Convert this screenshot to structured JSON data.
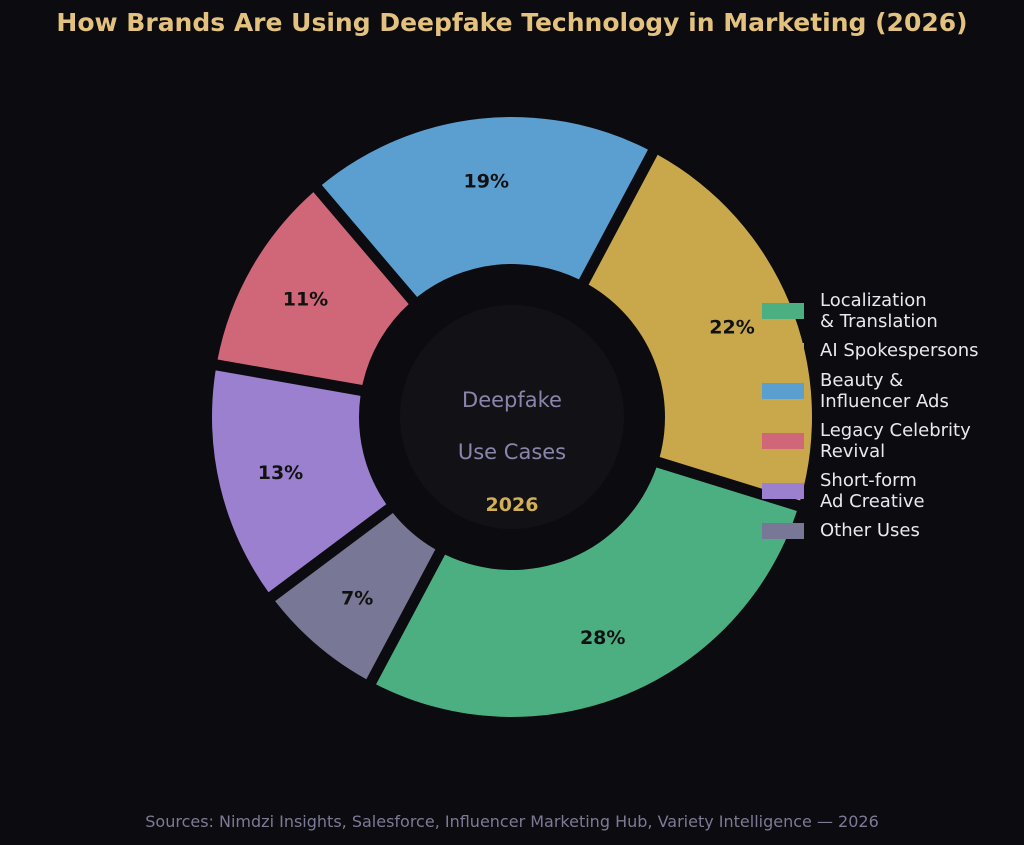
{
  "chart_data": {
    "type": "pie",
    "variant": "donut",
    "title": "How Brands Are Using Deepfake Technology in Marketing (2026)",
    "center_text": {
      "line1": "Deepfake",
      "line2": "Use Cases",
      "line3": "2026"
    },
    "slices": [
      {
        "label": "Localization\n& Translation",
        "value": 28,
        "display": "28%",
        "color": "#4caf81"
      },
      {
        "label": "AI Spokespersons",
        "value": 22,
        "display": "22%",
        "color": "#c9a74b"
      },
      {
        "label": "Beauty &\nInfluencer Ads",
        "value": 19,
        "display": "19%",
        "color": "#5b9fd1"
      },
      {
        "label": "Legacy Celebrity\nRevival",
        "value": 11,
        "display": "11%",
        "color": "#d06779"
      },
      {
        "label": "Short-form\nAd Creative",
        "value": 13,
        "display": "13%",
        "color": "#9a80cf"
      },
      {
        "label": "Other Uses",
        "value": 7,
        "display": "7%",
        "color": "#787896"
      }
    ],
    "legend_position": "right",
    "source": "Sources: Nimdzi Insights, Salesforce, Influencer Marketing Hub, Variety Intelligence — 2026"
  },
  "colors": {
    "background": "#0c0b0f",
    "title": "#e3c27f",
    "center_fill": "#121216",
    "center_text": "#8a86ab",
    "center_year": "#d2ae56",
    "slice_label": "#111111",
    "source_text": "#7d7a96"
  }
}
